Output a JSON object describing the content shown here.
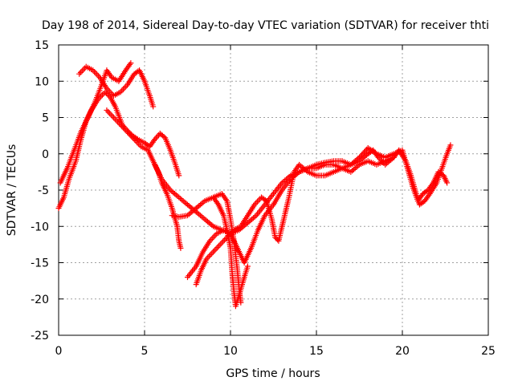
{
  "chart_data": {
    "type": "scatter",
    "title": "Day 198 of 2014, Sidereal Day-to-day VTEC variation (SDTVAR) for receiver thti",
    "xlabel": "GPS time / hours",
    "ylabel": "SDTVAR / TECUs",
    "xlim": [
      0,
      25
    ],
    "ylim": [
      -25,
      15
    ],
    "xticks": [
      0,
      5,
      10,
      15,
      20,
      25
    ],
    "yticks": [
      -25,
      -20,
      -15,
      -10,
      -5,
      0,
      5,
      10,
      15
    ],
    "xtick_labels": [
      "0",
      "5",
      "10",
      "15",
      "20",
      "25"
    ],
    "ytick_labels": [
      "-25",
      "-20",
      "-15",
      "-10",
      "-5",
      "0",
      "5",
      "10",
      "15"
    ],
    "grid": true,
    "marker": "+",
    "color": "#ff0000",
    "series": [
      {
        "name": "arc-1",
        "points": [
          [
            0.0,
            -7.5
          ],
          [
            0.3,
            -6.0
          ],
          [
            0.6,
            -3.5
          ],
          [
            1.0,
            -1.0
          ],
          [
            1.3,
            2.0
          ],
          [
            1.6,
            4.5
          ],
          [
            1.9,
            6.0
          ],
          [
            2.3,
            7.5
          ],
          [
            2.7,
            8.5
          ],
          [
            3.0,
            7.8
          ],
          [
            3.3,
            6.5
          ],
          [
            3.7,
            4.0
          ],
          [
            4.0,
            3.2
          ],
          [
            4.3,
            2.5
          ],
          [
            4.6,
            2.0
          ],
          [
            5.0,
            1.5
          ],
          [
            5.3,
            1.0
          ],
          [
            5.6,
            2.0
          ],
          [
            5.9,
            2.8
          ],
          [
            6.2,
            2.2
          ],
          [
            6.5,
            0.5
          ],
          [
            6.8,
            -1.5
          ],
          [
            7.0,
            -3.0
          ]
        ]
      },
      {
        "name": "arc-2",
        "points": [
          [
            1.2,
            11.0
          ],
          [
            1.6,
            12.0
          ],
          [
            2.0,
            11.5
          ],
          [
            2.4,
            10.5
          ],
          [
            2.8,
            9.0
          ],
          [
            3.2,
            8.0
          ],
          [
            3.6,
            8.5
          ],
          [
            4.0,
            9.5
          ],
          [
            4.4,
            11.0
          ],
          [
            4.7,
            11.5
          ],
          [
            5.0,
            10.0
          ],
          [
            5.3,
            8.0
          ],
          [
            5.5,
            6.5
          ]
        ]
      },
      {
        "name": "arc-3",
        "points": [
          [
            0.1,
            -4.0
          ],
          [
            0.5,
            -2.0
          ],
          [
            0.9,
            0.5
          ],
          [
            1.3,
            3.0
          ],
          [
            1.7,
            5.0
          ],
          [
            2.1,
            7.0
          ],
          [
            2.5,
            9.5
          ],
          [
            2.8,
            11.5
          ],
          [
            3.1,
            10.5
          ],
          [
            3.5,
            10.0
          ],
          [
            3.9,
            11.5
          ],
          [
            4.2,
            12.5
          ]
        ]
      },
      {
        "name": "arc-4",
        "points": [
          [
            2.8,
            6.0
          ],
          [
            3.2,
            5.0
          ],
          [
            3.6,
            4.0
          ],
          [
            4.0,
            3.0
          ],
          [
            4.4,
            2.0
          ],
          [
            4.8,
            1.0
          ],
          [
            5.2,
            0.5
          ],
          [
            5.5,
            -1.0
          ],
          [
            5.8,
            -2.5
          ],
          [
            6.0,
            -4.0
          ],
          [
            6.3,
            -5.5
          ],
          [
            6.6,
            -7.5
          ],
          [
            6.9,
            -10.0
          ],
          [
            7.0,
            -12.0
          ],
          [
            7.1,
            -13.0
          ]
        ]
      },
      {
        "name": "arc-5",
        "points": [
          [
            5.6,
            -1.5
          ],
          [
            6.0,
            -3.5
          ],
          [
            6.5,
            -5.0
          ],
          [
            7.0,
            -6.0
          ],
          [
            7.5,
            -7.0
          ],
          [
            8.0,
            -8.0
          ],
          [
            8.5,
            -9.0
          ],
          [
            9.0,
            -10.0
          ],
          [
            9.5,
            -10.5
          ],
          [
            10.0,
            -11.0
          ],
          [
            10.5,
            -10.5
          ],
          [
            11.0,
            -9.5
          ],
          [
            11.5,
            -8.5
          ],
          [
            12.0,
            -7.0
          ],
          [
            12.5,
            -5.5
          ],
          [
            13.0,
            -4.0
          ],
          [
            13.5,
            -3.0
          ],
          [
            14.0,
            -2.5
          ],
          [
            14.5,
            -2.0
          ],
          [
            15.0,
            -2.0
          ],
          [
            15.5,
            -1.5
          ],
          [
            16.0,
            -1.5
          ],
          [
            16.5,
            -2.0
          ],
          [
            17.0,
            -1.5
          ],
          [
            17.5,
            -1.0
          ],
          [
            18.0,
            0.0
          ],
          [
            18.3,
            0.5
          ],
          [
            18.6,
            -0.5
          ],
          [
            19.0,
            -1.5
          ],
          [
            19.5,
            -0.5
          ],
          [
            19.8,
            0.5
          ],
          [
            20.2,
            -1.0
          ],
          [
            20.5,
            -3.0
          ],
          [
            20.8,
            -5.5
          ],
          [
            21.0,
            -7.0
          ],
          [
            21.3,
            -6.5
          ],
          [
            21.6,
            -5.5
          ],
          [
            22.0,
            -4.0
          ],
          [
            22.3,
            -2.0
          ],
          [
            22.6,
            0.0
          ],
          [
            22.8,
            1.2
          ]
        ]
      },
      {
        "name": "arc-6",
        "points": [
          [
            6.6,
            -8.5
          ],
          [
            7.0,
            -8.7
          ],
          [
            7.5,
            -8.5
          ],
          [
            8.0,
            -7.5
          ],
          [
            8.5,
            -6.5
          ],
          [
            9.0,
            -6.0
          ],
          [
            9.5,
            -5.5
          ],
          [
            9.8,
            -6.5
          ],
          [
            10.0,
            -9.0
          ],
          [
            10.2,
            -12.0
          ],
          [
            10.4,
            -16.0
          ],
          [
            10.5,
            -18.5
          ],
          [
            10.6,
            -20.5
          ]
        ]
      },
      {
        "name": "arc-7",
        "points": [
          [
            7.5,
            -17.0
          ],
          [
            8.0,
            -15.5
          ],
          [
            8.4,
            -13.5
          ],
          [
            8.8,
            -12.0
          ],
          [
            9.2,
            -11.0
          ],
          [
            9.6,
            -10.5
          ],
          [
            10.0,
            -11.0
          ],
          [
            10.4,
            -13.0
          ],
          [
            10.8,
            -15.0
          ],
          [
            11.2,
            -13.0
          ],
          [
            11.6,
            -10.5
          ],
          [
            12.0,
            -8.5
          ],
          [
            12.5,
            -7.0
          ],
          [
            13.0,
            -5.0
          ],
          [
            13.5,
            -3.5
          ],
          [
            14.0,
            -2.5
          ],
          [
            14.5,
            -2.0
          ],
          [
            15.0,
            -1.5
          ],
          [
            15.5,
            -1.2
          ],
          [
            16.0,
            -1.0
          ],
          [
            16.5,
            -1.0
          ],
          [
            17.0,
            -1.5
          ],
          [
            17.5,
            -0.5
          ],
          [
            18.0,
            0.8
          ],
          [
            18.5,
            0.0
          ],
          [
            19.0,
            -0.5
          ],
          [
            19.5,
            0.0
          ],
          [
            20.0,
            0.5
          ],
          [
            20.3,
            -2.0
          ],
          [
            20.6,
            -4.5
          ],
          [
            20.9,
            -6.5
          ],
          [
            21.2,
            -5.5
          ],
          [
            21.5,
            -5.0
          ],
          [
            21.8,
            -4.0
          ],
          [
            22.1,
            -2.5
          ],
          [
            22.4,
            -3.0
          ],
          [
            22.6,
            -4.0
          ]
        ]
      },
      {
        "name": "arc-8",
        "points": [
          [
            8.0,
            -18.0
          ],
          [
            8.3,
            -16.0
          ],
          [
            8.6,
            -14.5
          ],
          [
            9.0,
            -13.5
          ],
          [
            9.4,
            -12.5
          ],
          [
            9.8,
            -11.5
          ],
          [
            10.2,
            -10.5
          ],
          [
            10.6,
            -10.0
          ],
          [
            11.0,
            -8.5
          ],
          [
            11.4,
            -7.0
          ],
          [
            11.8,
            -6.0
          ],
          [
            12.1,
            -6.5
          ],
          [
            12.4,
            -9.0
          ],
          [
            12.6,
            -11.5
          ],
          [
            12.8,
            -12.0
          ],
          [
            13.1,
            -9.0
          ],
          [
            13.4,
            -6.0
          ],
          [
            13.7,
            -2.5
          ],
          [
            14.0,
            -1.5
          ],
          [
            14.5,
            -2.5
          ],
          [
            15.0,
            -3.0
          ],
          [
            15.5,
            -3.0
          ],
          [
            16.0,
            -2.5
          ],
          [
            16.5,
            -2.0
          ],
          [
            17.0,
            -2.5
          ],
          [
            17.5,
            -1.5
          ],
          [
            18.0,
            -1.0
          ],
          [
            18.5,
            -1.5
          ],
          [
            19.0,
            -1.0
          ],
          [
            19.5,
            -0.5
          ]
        ]
      },
      {
        "name": "arc-9",
        "points": [
          [
            9.0,
            -6.0
          ],
          [
            9.3,
            -7.0
          ],
          [
            9.6,
            -8.5
          ],
          [
            9.8,
            -10.5
          ],
          [
            10.0,
            -13.0
          ],
          [
            10.1,
            -16.5
          ],
          [
            10.2,
            -19.0
          ],
          [
            10.3,
            -21.0
          ],
          [
            10.5,
            -19.5
          ],
          [
            10.8,
            -17.0
          ],
          [
            11.0,
            -15.5
          ]
        ]
      }
    ]
  }
}
